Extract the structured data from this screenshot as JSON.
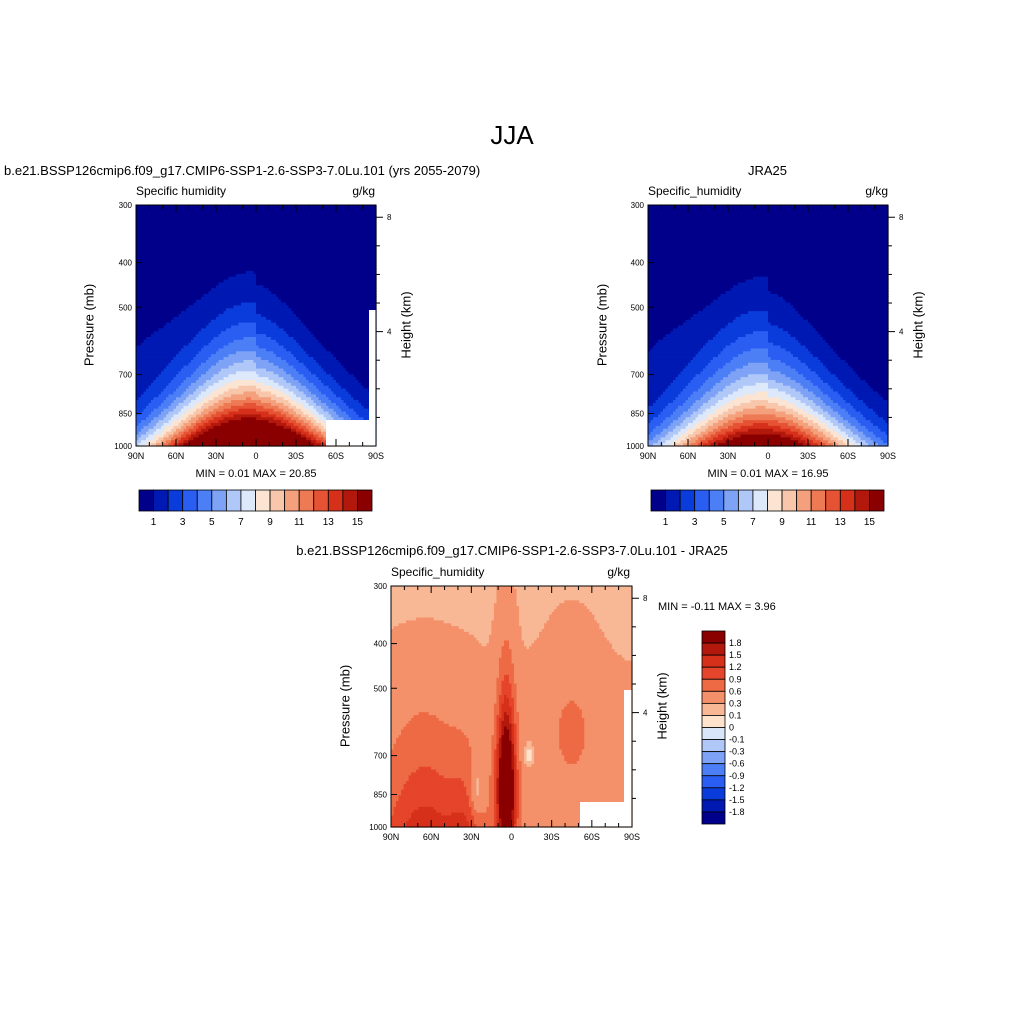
{
  "page": {
    "title": "JJA"
  },
  "panels": {
    "model": {
      "header": "b.e21.BSSP126cmip6.f09_g17.CMIP6-SSP1-2.6-SSP3-7.0Lu.101 (yrs 2055-2079)",
      "left_label": "Specific humidity",
      "right_label": "g/kg",
      "ylabel": "Pressure (mb)",
      "ylabel_right": "Height (km)",
      "stats": "MIN =   0.01  MAX =  20.85"
    },
    "obs": {
      "header": "JRA25",
      "left_label": "Specific_humidity",
      "right_label": "g/kg",
      "ylabel": "Pressure (mb)",
      "ylabel_right": "Height (km)",
      "stats": "MIN =   0.01  MAX =  16.95"
    },
    "diff": {
      "header": "b.e21.BSSP126cmip6.f09_g17.CMIP6-SSP1-2.6-SSP3-7.0Lu.101 - JRA25",
      "left_label": "Specific_humidity",
      "right_label": "g/kg",
      "ylabel": "Pressure (mb)",
      "ylabel_right": "Height (km)",
      "stats": "MIN =  -0.11  MAX =   3.96"
    }
  },
  "chart_data": [
    {
      "type": "heatmap",
      "name": "model",
      "x_ticks": [
        "90N",
        "60N",
        "30N",
        "0",
        "30S",
        "60S",
        "90S"
      ],
      "y_ticks": [
        "300",
        "400",
        "500",
        "700",
        "850",
        "1000"
      ],
      "y_right_ticks": [
        "8",
        "4"
      ],
      "xlim": [
        90,
        -90
      ],
      "ylim": [
        1000,
        300
      ],
      "peak_lat": 5,
      "peak_value": 20.85,
      "min": 0.01,
      "max": 20.85,
      "colorbar_labels": [
        "1",
        "3",
        "5",
        "7",
        "9",
        "11",
        "13",
        "15"
      ]
    },
    {
      "type": "heatmap",
      "name": "obs",
      "x_ticks": [
        "90N",
        "60N",
        "30N",
        "0",
        "30S",
        "60S",
        "90S"
      ],
      "y_ticks": [
        "300",
        "400",
        "500",
        "700",
        "850",
        "1000"
      ],
      "y_right_ticks": [
        "8",
        "4"
      ],
      "xlim": [
        90,
        -90
      ],
      "ylim": [
        1000,
        300
      ],
      "peak_lat": 5,
      "peak_value": 16.95,
      "min": 0.01,
      "max": 16.95,
      "colorbar_labels": [
        "1",
        "3",
        "5",
        "7",
        "9",
        "11",
        "13",
        "15"
      ]
    },
    {
      "type": "heatmap",
      "name": "diff",
      "x_ticks": [
        "90N",
        "60N",
        "30N",
        "0",
        "30S",
        "60S",
        "90S"
      ],
      "y_ticks": [
        "300",
        "400",
        "500",
        "700",
        "850",
        "1000"
      ],
      "y_right_ticks": [
        "8",
        "4"
      ],
      "xlim": [
        90,
        -90
      ],
      "ylim": [
        1000,
        300
      ],
      "min": -0.11,
      "max": 3.96,
      "colorbar_labels": [
        "1.8",
        "1.5",
        "1.2",
        "0.9",
        "0.6",
        "0.3",
        "0.1",
        "0",
        "-0.1",
        "-0.3",
        "-0.6",
        "-0.9",
        "-1.2",
        "-1.5",
        "-1.8"
      ]
    }
  ],
  "colors": {
    "seq": [
      "#00008b",
      "#0019b3",
      "#0a3cdc",
      "#2a5ef2",
      "#4c7ef5",
      "#7da2f6",
      "#b0c8f8",
      "#dde8fb",
      "#fbe4d2",
      "#f8c6aa",
      "#f4a07c",
      "#ee7a55",
      "#e55334",
      "#d6301b",
      "#b3180c",
      "#8a0000"
    ],
    "div": [
      "#8a0000",
      "#b3180c",
      "#d6301b",
      "#e5452b",
      "#ee6a45",
      "#f4906a",
      "#f8b896",
      "#fde2cc",
      "#d9e6fa",
      "#b0c8f8",
      "#7da2f6",
      "#4c7ef5",
      "#2a5ef2",
      "#0a3cdc",
      "#0019b3",
      "#00008b"
    ]
  }
}
